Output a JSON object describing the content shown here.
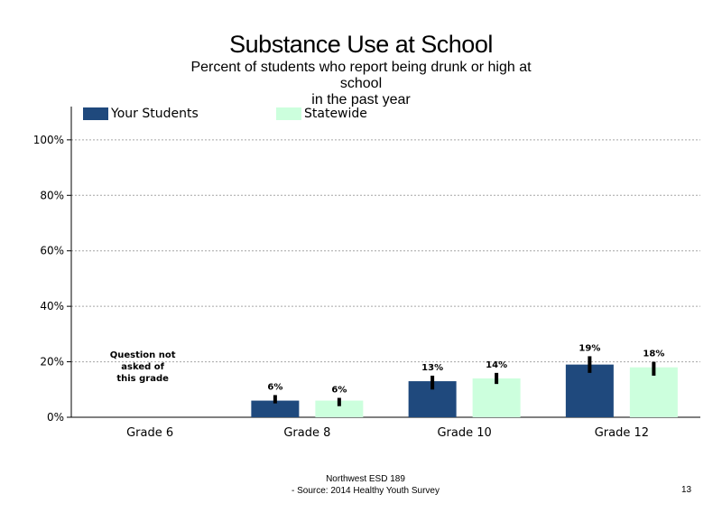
{
  "chart_data": {
    "type": "bar",
    "title": "Substance Use at School",
    "subtitle_lines": [
      "Percent of students  who report being drunk or high at",
      "school",
      "in the past year"
    ],
    "categories": [
      "Grade 6",
      "Grade 8",
      "Grade 10",
      "Grade 12"
    ],
    "series": [
      {
        "name": "Your Students",
        "color": "#1f497d",
        "values": [
          null,
          6,
          13,
          19
        ],
        "labels": [
          "",
          "6%",
          "13%",
          "19%"
        ],
        "error_low": [
          null,
          5,
          10,
          16
        ],
        "error_high": [
          null,
          8,
          15,
          22
        ]
      },
      {
        "name": "Statewide",
        "color": "#ccffdd",
        "values": [
          null,
          6,
          14,
          18
        ],
        "labels": [
          "",
          "6%",
          "14%",
          "18%"
        ],
        "error_low": [
          null,
          4,
          12,
          15
        ],
        "error_high": [
          null,
          7,
          16,
          20
        ]
      }
    ],
    "y_ticks": [
      0,
      20,
      40,
      60,
      80,
      100
    ],
    "y_tick_labels": [
      "0%",
      "20%",
      "40%",
      "60%",
      "80%",
      "100%"
    ],
    "ylim": [
      0,
      112
    ],
    "grid": true,
    "grid_style": "dotted",
    "legend_position": "top-left",
    "annotation": {
      "category_index": 0,
      "lines": [
        "Question not",
        "asked of",
        "this grade"
      ]
    }
  },
  "footer": {
    "line1": "Northwest ESD  189",
    "line2": "- Source: 2014 Healthy  Youth Survey"
  },
  "page_number": "13"
}
